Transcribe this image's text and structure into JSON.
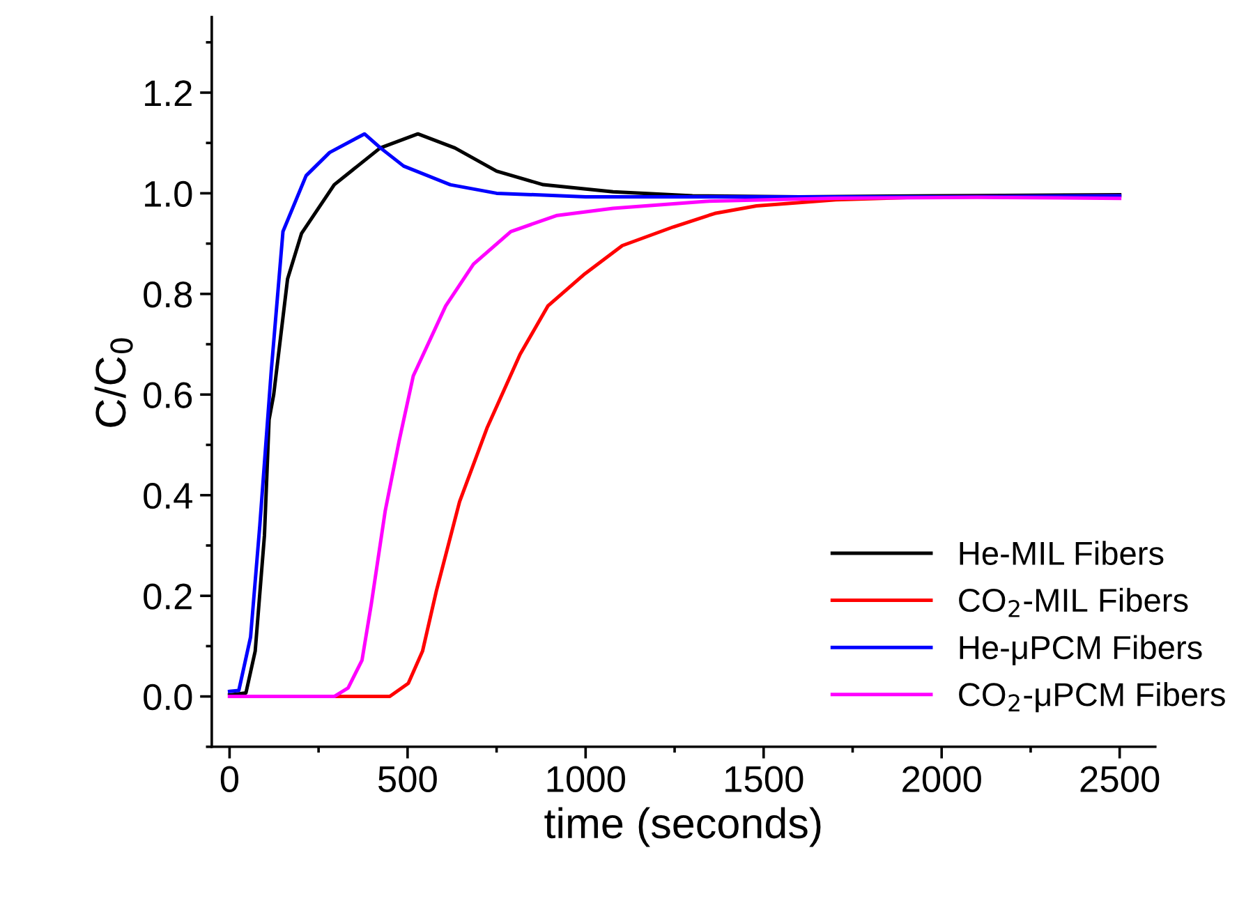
{
  "chart_data": {
    "type": "line",
    "xlabel": "time (seconds)",
    "ylabel": "C/C$_{0}$",
    "xlim": [
      -50,
      2600
    ],
    "ylim": [
      -0.1,
      1.35
    ],
    "xticks": [
      0,
      500,
      1000,
      1500,
      2000,
      2500
    ],
    "yticks": [
      {
        "value": 0,
        "label": "0.0"
      },
      {
        "value": 0.2,
        "label": "0.2"
      },
      {
        "value": 0.4,
        "label": "0.4"
      },
      {
        "value": 0.6,
        "label": "0.6"
      },
      {
        "value": 0.8,
        "label": "0.8"
      },
      {
        "value": 1.0,
        "label": "1.0"
      },
      {
        "value": 1.2,
        "label": "1.2"
      }
    ],
    "grid": false,
    "legend": "bottom right",
    "marker": "none",
    "line_style": "solid",
    "series": [
      {
        "name": "He-MIL Fibers",
        "color": "#000000",
        "x": [
          0,
          46,
          72,
          98,
          111,
          124,
          163,
          202,
          294,
          423,
          529,
          633,
          750,
          881,
          1077,
          1300,
          1600,
          2000,
          2500
        ],
        "values": [
          0.003,
          0.007,
          0.09,
          0.32,
          0.55,
          0.6,
          0.83,
          0.92,
          1.017,
          1.09,
          1.118,
          1.09,
          1.044,
          1.017,
          1.003,
          0.995,
          0.993,
          0.995,
          0.997
        ]
      },
      {
        "name": "CO$_{2}$-MIL Fibers",
        "color": "#ff0000",
        "x": [
          0,
          450,
          502,
          542,
          581,
          646,
          724,
          816,
          894,
          998,
          1103,
          1246,
          1363,
          1480,
          1703,
          1964,
          2500
        ],
        "values": [
          0.0,
          0.0,
          0.026,
          0.09,
          0.21,
          0.387,
          0.535,
          0.68,
          0.776,
          0.84,
          0.896,
          0.933,
          0.96,
          0.975,
          0.987,
          0.993,
          0.995
        ]
      },
      {
        "name": "He-μPCM Fibers",
        "color": "#0000ff",
        "x": [
          0,
          26,
          59,
          85,
          117,
          150,
          215,
          281,
          379,
          424,
          489,
          620,
          750,
          1000,
          1500,
          2000,
          2500
        ],
        "values": [
          0.01,
          0.012,
          0.118,
          0.34,
          0.646,
          0.924,
          1.035,
          1.081,
          1.118,
          1.09,
          1.054,
          1.017,
          1.0,
          0.993,
          0.993,
          0.993,
          0.995
        ]
      },
      {
        "name": "CO$_{2}$-μPCM Fibers",
        "color": "#ff00ff",
        "x": [
          0,
          294,
          333,
          372,
          398,
          437,
          476,
          516,
          607,
          685,
          790,
          920,
          1077,
          1338,
          1700,
          2100,
          2500
        ],
        "values": [
          0.0,
          0.0,
          0.017,
          0.072,
          0.183,
          0.368,
          0.507,
          0.637,
          0.776,
          0.859,
          0.924,
          0.956,
          0.97,
          0.984,
          0.99,
          0.992,
          0.99
        ]
      }
    ]
  }
}
